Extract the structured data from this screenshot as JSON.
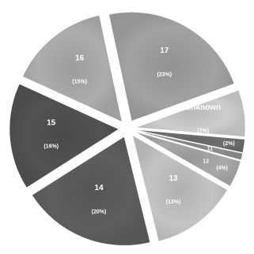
{
  "chart_data": {
    "type": "pie",
    "title": "",
    "legend": "none",
    "slices": [
      {
        "label": "Unknown",
        "percent_label": "(7%)",
        "value": 7,
        "color": "#cdcdcd"
      },
      {
        "label": "",
        "percent_label": "(2%)",
        "value": 2,
        "color": "#6e6e6e"
      },
      {
        "label": "11",
        "percent_label": "",
        "value": 1,
        "color": "#8e8e8e"
      },
      {
        "label": "12",
        "percent_label": "(4%)",
        "value": 4,
        "color": "#a9a9a9"
      },
      {
        "label": "13",
        "percent_label": "(13%)",
        "value": 13,
        "color": "#c4c4c4"
      },
      {
        "label": "14",
        "percent_label": "(20%)",
        "value": 20,
        "color": "#5e5e5e"
      },
      {
        "label": "15",
        "percent_label": "(16%)",
        "value": 16,
        "color": "#525252"
      },
      {
        "label": "16",
        "percent_label": "(15%)",
        "value": 15,
        "color": "#adadad"
      },
      {
        "label": "17",
        "percent_label": "(23%)",
        "value": 23,
        "color": "#a2a2a2"
      }
    ]
  }
}
